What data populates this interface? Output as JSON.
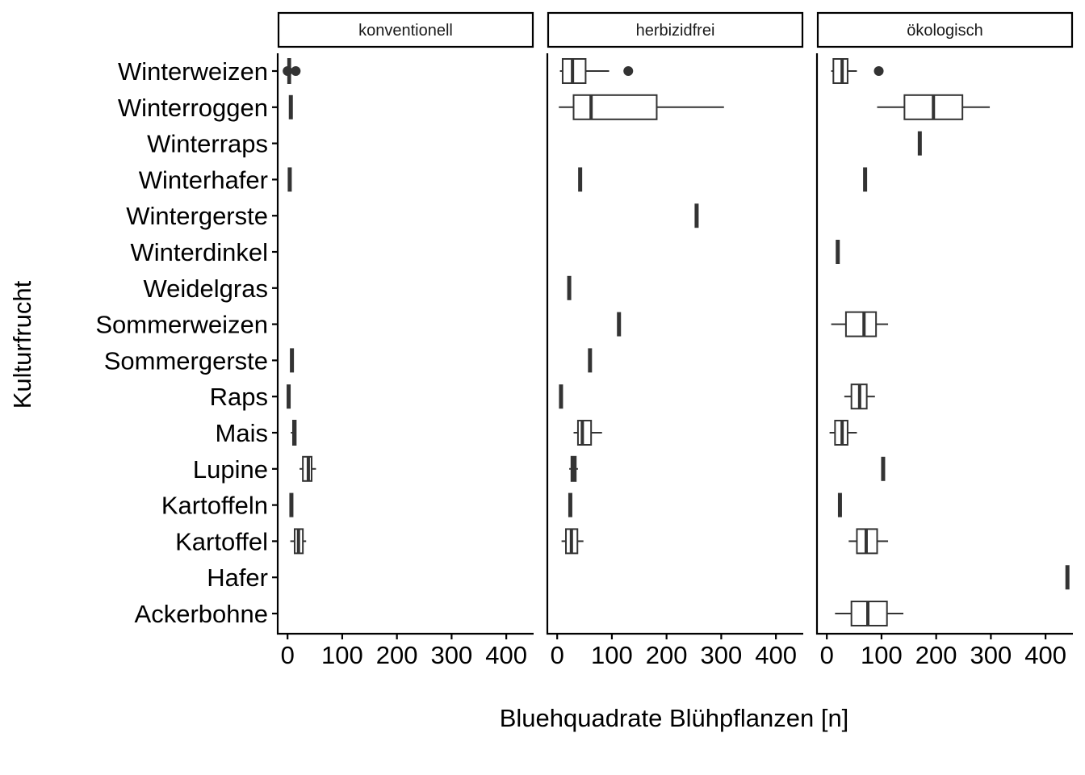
{
  "chart_data": {
    "type": "boxplot",
    "orientation": "horizontal",
    "xlabel": "Bluehquadrate Blühpflanzen [n]",
    "ylabel": "Kulturfrucht",
    "xlim": [
      -18,
      450
    ],
    "xticks": [
      0,
      100,
      200,
      300,
      400
    ],
    "categories": [
      "Winterweizen",
      "Winterroggen",
      "Winterraps",
      "Winterhafer",
      "Wintergerste",
      "Winterdinkel",
      "Weidelgras",
      "Sommerweizen",
      "Sommergerste",
      "Raps",
      "Mais",
      "Lupine",
      "Kartoffeln",
      "Kartoffel",
      "Hafer",
      "Ackerbohne"
    ],
    "facets": [
      {
        "name": "konventionell",
        "boxes": [
          {
            "category": "Winterweizen",
            "min": 0,
            "q1": 1,
            "median": 3,
            "q3": 5,
            "max": 8,
            "outliers": [
              0,
              15
            ]
          },
          {
            "category": "Winterroggen",
            "min": 6,
            "q1": 6,
            "median": 6,
            "q3": 6,
            "max": 6,
            "outliers": []
          },
          {
            "category": "Winterhafer",
            "min": 4,
            "q1": 4,
            "median": 4,
            "q3": 4,
            "max": 4,
            "outliers": []
          },
          {
            "category": "Sommergerste",
            "min": 8,
            "q1": 8,
            "median": 8,
            "q3": 8,
            "max": 8,
            "outliers": []
          },
          {
            "category": "Raps",
            "min": 2,
            "q1": 2,
            "median": 2,
            "q3": 2,
            "max": 2,
            "outliers": []
          },
          {
            "category": "Mais",
            "min": 6,
            "q1": 10,
            "median": 13,
            "q3": 15,
            "max": 16,
            "outliers": []
          },
          {
            "category": "Lupine",
            "min": 22,
            "q1": 28,
            "median": 38,
            "q3": 44,
            "max": 52,
            "outliers": []
          },
          {
            "category": "Kartoffeln",
            "min": 7,
            "q1": 7,
            "median": 7,
            "q3": 7,
            "max": 7,
            "outliers": []
          },
          {
            "category": "Kartoffel",
            "min": 5,
            "q1": 13,
            "median": 20,
            "q3": 28,
            "max": 34,
            "outliers": []
          }
        ]
      },
      {
        "name": "herbizidfrei",
        "boxes": [
          {
            "category": "Winterweizen",
            "min": 5,
            "q1": 10,
            "median": 28,
            "q3": 52,
            "max": 95,
            "outliers": [
              130
            ]
          },
          {
            "category": "Winterroggen",
            "min": 3,
            "q1": 30,
            "median": 62,
            "q3": 182,
            "max": 305,
            "outliers": []
          },
          {
            "category": "Winterhafer",
            "min": 42,
            "q1": 42,
            "median": 42,
            "q3": 42,
            "max": 42,
            "outliers": []
          },
          {
            "category": "Wintergerste",
            "min": 255,
            "q1": 255,
            "median": 255,
            "q3": 255,
            "max": 255,
            "outliers": []
          },
          {
            "category": "Weidelgras",
            "min": 22,
            "q1": 22,
            "median": 22,
            "q3": 22,
            "max": 22,
            "outliers": []
          },
          {
            "category": "Sommerweizen",
            "min": 113,
            "q1": 113,
            "median": 113,
            "q3": 113,
            "max": 113,
            "outliers": []
          },
          {
            "category": "Sommergerste",
            "min": 60,
            "q1": 60,
            "median": 60,
            "q3": 60,
            "max": 60,
            "outliers": []
          },
          {
            "category": "Raps",
            "min": 7,
            "q1": 7,
            "median": 7,
            "q3": 7,
            "max": 7,
            "outliers": []
          },
          {
            "category": "Mais",
            "min": 30,
            "q1": 38,
            "median": 46,
            "q3": 62,
            "max": 82,
            "outliers": []
          },
          {
            "category": "Lupine",
            "min": 22,
            "q1": 26,
            "median": 30,
            "q3": 34,
            "max": 38,
            "outliers": []
          },
          {
            "category": "Kartoffeln",
            "min": 24,
            "q1": 24,
            "median": 24,
            "q3": 24,
            "max": 24,
            "outliers": []
          },
          {
            "category": "Kartoffel",
            "min": 8,
            "q1": 16,
            "median": 26,
            "q3": 37,
            "max": 48,
            "outliers": []
          }
        ]
      },
      {
        "name": "ökologisch",
        "boxes": [
          {
            "category": "Winterweizen",
            "min": 8,
            "q1": 12,
            "median": 28,
            "q3": 38,
            "max": 55,
            "outliers": [
              95
            ]
          },
          {
            "category": "Winterroggen",
            "min": 92,
            "q1": 142,
            "median": 195,
            "q3": 248,
            "max": 298,
            "outliers": []
          },
          {
            "category": "Winterraps",
            "min": 170,
            "q1": 170,
            "median": 170,
            "q3": 170,
            "max": 170,
            "outliers": []
          },
          {
            "category": "Winterhafer",
            "min": 70,
            "q1": 70,
            "median": 70,
            "q3": 70,
            "max": 70,
            "outliers": []
          },
          {
            "category": "Winterdinkel",
            "min": 20,
            "q1": 20,
            "median": 20,
            "q3": 20,
            "max": 20,
            "outliers": []
          },
          {
            "category": "Sommerweizen",
            "min": 8,
            "q1": 35,
            "median": 68,
            "q3": 90,
            "max": 112,
            "outliers": []
          },
          {
            "category": "Raps",
            "min": 32,
            "q1": 45,
            "median": 60,
            "q3": 73,
            "max": 88,
            "outliers": []
          },
          {
            "category": "Mais",
            "min": 5,
            "q1": 15,
            "median": 28,
            "q3": 38,
            "max": 55,
            "outliers": []
          },
          {
            "category": "Lupine",
            "min": 103,
            "q1": 103,
            "median": 103,
            "q3": 103,
            "max": 103,
            "outliers": []
          },
          {
            "category": "Kartoffeln",
            "min": 24,
            "q1": 24,
            "median": 24,
            "q3": 24,
            "max": 24,
            "outliers": []
          },
          {
            "category": "Kartoffel",
            "min": 40,
            "q1": 55,
            "median": 72,
            "q3": 92,
            "max": 112,
            "outliers": []
          },
          {
            "category": "Hafer",
            "min": 440,
            "q1": 440,
            "median": 440,
            "q3": 440,
            "max": 440,
            "outliers": []
          },
          {
            "category": "Ackerbohne",
            "min": 15,
            "q1": 45,
            "median": 75,
            "q3": 110,
            "max": 140,
            "outliers": []
          }
        ]
      }
    ]
  },
  "colors": {
    "stroke": "#333333",
    "axis": "#000000",
    "strip_fill": "#ffffff",
    "background": "#ffffff"
  }
}
